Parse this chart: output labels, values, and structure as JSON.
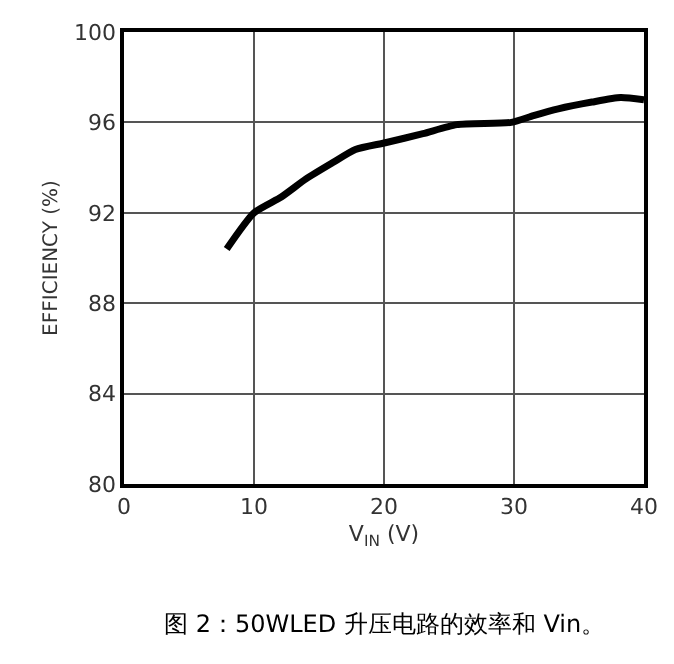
{
  "chart_data": {
    "type": "line",
    "xlabel": "V$_{IN}$ (V)",
    "ylabel": "EFFICIENCY (%)",
    "annotations": [
      "图 2：50WLED 升压电路的效率和 Vin。"
    ],
    "xlim": [
      0,
      40
    ],
    "xticks": [
      0,
      10,
      20,
      30,
      40
    ],
    "ylim": [
      80,
      100
    ],
    "yticks": [
      80,
      84,
      88,
      92,
      96,
      100
    ],
    "grid": true,
    "line_style": "solid",
    "series": [
      {
        "color": "#000000",
        "x": [
          7.9,
          10,
          12.1,
          14,
          16,
          17.8,
          20.1,
          23,
          25.6,
          29.8,
          31.5,
          33.4,
          36,
          38.2,
          40
        ],
        "values": [
          90.4,
          92.0,
          92.7,
          93.5,
          94.2,
          94.8,
          95.1,
          95.5,
          95.9,
          96.0,
          96.3,
          96.6,
          96.9,
          97.1,
          97.0
        ]
      }
    ]
  }
}
